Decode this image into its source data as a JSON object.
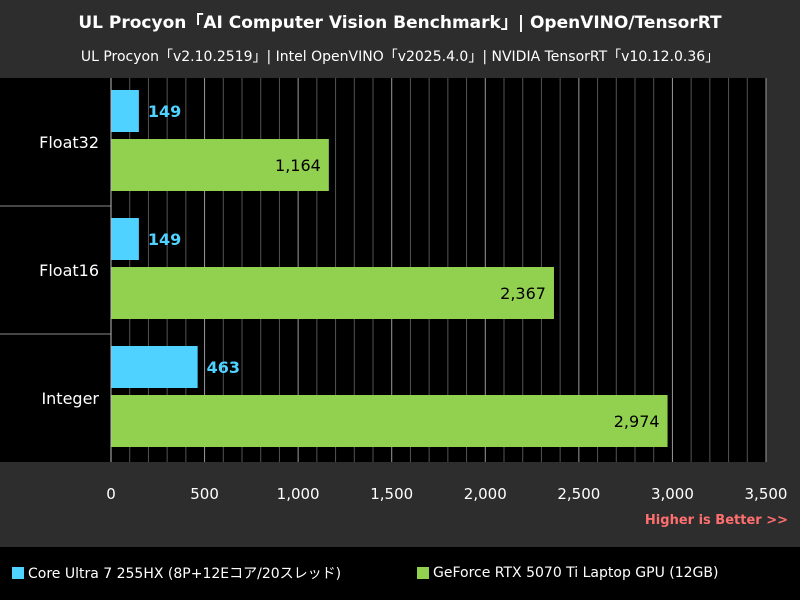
{
  "title": "UL Procyon「AI Computer Vision Benchmark」| OpenVINO/TensorRT",
  "subtitle": "UL Procyon「v2.10.2519」| Intel OpenVINO「v2025.4.0」| NVIDIA TensorRT「v10.12.0.36」",
  "hint": "Higher is Better >>",
  "colors": {
    "background": "#2d2d2d",
    "plot_background": "#000000",
    "series_cpu": "#4fd2ff",
    "series_gpu": "#92d050",
    "hint": "#ff6f6f"
  },
  "chart_data": {
    "type": "bar",
    "orientation": "horizontal",
    "categories": [
      "Float32",
      "Float16",
      "Integer"
    ],
    "series": [
      {
        "name": "Core Ultra 7 255HX (8P+12Eコア/20スレッド)",
        "values": [
          149,
          149,
          463
        ],
        "labels": [
          "149",
          "149",
          "463"
        ],
        "color": "#4fd2ff"
      },
      {
        "name": "GeForce RTX 5070 Ti Laptop GPU (12GB)",
        "values": [
          1164,
          2367,
          2974
        ],
        "labels": [
          "1,164",
          "2,367",
          "2,974"
        ],
        "color": "#92d050"
      }
    ],
    "xlim": [
      0,
      3500
    ],
    "xticks": [
      0,
      500,
      1000,
      1500,
      2000,
      2500,
      3000,
      3500
    ],
    "xtick_labels": [
      "0",
      "500",
      "1,000",
      "1,500",
      "2,000",
      "2,500",
      "3,000",
      "3,500"
    ],
    "minor_step": 100,
    "grid": true,
    "legend_position": "bottom"
  }
}
